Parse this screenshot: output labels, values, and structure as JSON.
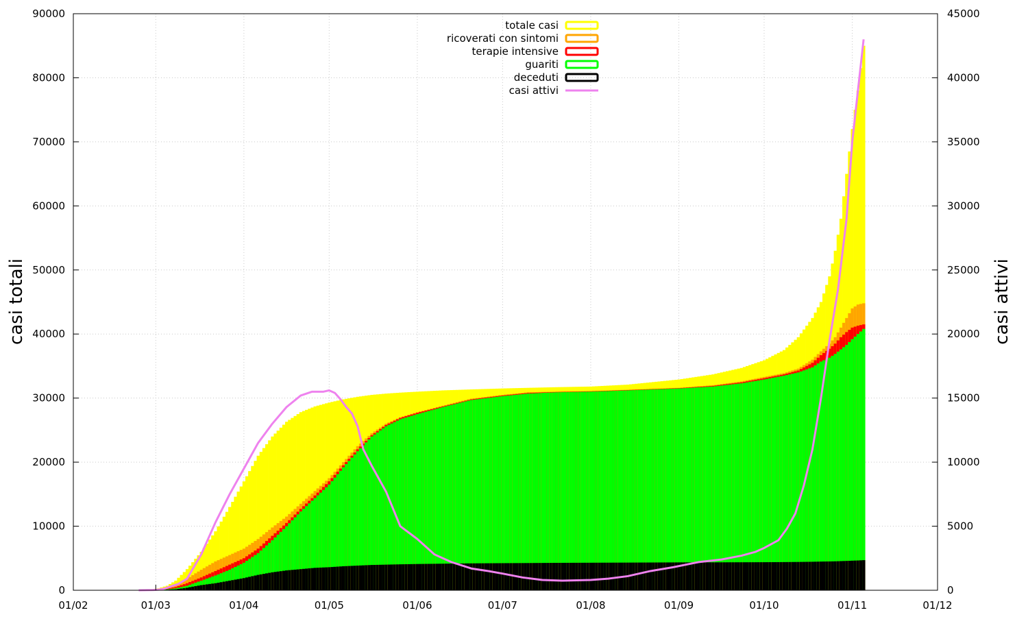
{
  "chart_data": {
    "type": "area",
    "ylabel_left": "casi totali",
    "ylabel_right": "casi attivi",
    "ylim_left": [
      0,
      90000
    ],
    "ylim_right": [
      0,
      45000
    ],
    "y_ticks_left": [
      0,
      10000,
      20000,
      30000,
      40000,
      50000,
      60000,
      70000,
      80000,
      90000
    ],
    "y_ticks_right": [
      0,
      5000,
      10000,
      15000,
      20000,
      25000,
      30000,
      35000,
      40000,
      45000
    ],
    "x_tick_labels": [
      "01/02",
      "01/03",
      "01/04",
      "01/05",
      "01/06",
      "01/07",
      "01/08",
      "01/09",
      "01/10",
      "01/11",
      "01/12"
    ],
    "x_tick_days": [
      0,
      29,
      60,
      90,
      121,
      151,
      182,
      213,
      243,
      274,
      304
    ],
    "xlim_days": [
      0,
      304
    ],
    "grid": true,
    "legend_position": "top-center",
    "legend": [
      {
        "label": "totale casi",
        "color": "#ffff00",
        "kind": "box"
      },
      {
        "label": "ricoverati con sintomi",
        "color": "#ffa500",
        "kind": "box"
      },
      {
        "label": "terapie intensive",
        "color": "#ff0000",
        "kind": "box"
      },
      {
        "label": "guariti",
        "color": "#00ff00",
        "kind": "box"
      },
      {
        "label": "deceduti",
        "color": "#000000",
        "kind": "box"
      },
      {
        "label": "casi attivi",
        "color": "#ee82ee",
        "kind": "line"
      }
    ],
    "bar_series_keypoints": {
      "x_days": [
        23,
        27,
        30,
        33,
        36,
        40,
        45,
        50,
        55,
        60,
        65,
        70,
        75,
        80,
        85,
        90,
        95,
        100,
        105,
        110,
        115,
        121,
        130,
        140,
        151,
        160,
        170,
        182,
        195,
        213,
        225,
        235,
        243,
        250,
        255,
        260,
        263,
        266,
        268,
        270,
        272,
        274,
        276,
        278
      ],
      "totale_casi": [
        0,
        100,
        300,
        700,
        1500,
        3300,
        6000,
        9200,
        13000,
        17000,
        21000,
        24000,
        26300,
        27800,
        28700,
        29300,
        29800,
        30200,
        30500,
        30700,
        30850,
        31000,
        31200,
        31350,
        31500,
        31600,
        31700,
        31800,
        32100,
        32900,
        33700,
        34700,
        35900,
        37500,
        39500,
        42500,
        45000,
        49000,
        53000,
        58000,
        65000,
        72000,
        78000,
        85000
      ],
      "ricoverati_con_sintomi": [
        0,
        60,
        150,
        400,
        800,
        1800,
        3200,
        4500,
        5500,
        6500,
        8000,
        9800,
        11500,
        13500,
        15500,
        17500,
        20000,
        22500,
        24500,
        26000,
        27000,
        27800,
        28800,
        29900,
        30500,
        30900,
        31000,
        31100,
        31300,
        31600,
        32000,
        32600,
        33300,
        33900,
        34600,
        36000,
        37300,
        38500,
        39500,
        41000,
        42500,
        44000,
        44600,
        44800
      ],
      "terapie_intensive": [
        0,
        40,
        100,
        250,
        500,
        1100,
        2000,
        3000,
        4000,
        5000,
        6500,
        8500,
        10500,
        12700,
        14800,
        17000,
        19500,
        22000,
        24200,
        25800,
        26900,
        27700,
        28700,
        29800,
        30400,
        30800,
        30950,
        31050,
        31250,
        31550,
        31900,
        32450,
        33100,
        33700,
        34300,
        35500,
        36700,
        37700,
        38500,
        39500,
        40300,
        41000,
        41300,
        41500
      ],
      "guariti": [
        0,
        20,
        50,
        150,
        300,
        700,
        1500,
        2300,
        3200,
        4300,
        5800,
        7800,
        10000,
        12300,
        14400,
        16500,
        19200,
        21700,
        24000,
        25600,
        26700,
        27500,
        28600,
        29700,
        30300,
        30700,
        30900,
        31000,
        31200,
        31500,
        31800,
        32300,
        32900,
        33500,
        34000,
        34800,
        35700,
        36300,
        36900,
        37600,
        38300,
        39200,
        40000,
        40800
      ],
      "deceduti": [
        0,
        10,
        30,
        80,
        150,
        400,
        800,
        1100,
        1500,
        1900,
        2400,
        2800,
        3100,
        3300,
        3500,
        3600,
        3750,
        3850,
        3950,
        4000,
        4050,
        4100,
        4150,
        4200,
        4230,
        4250,
        4280,
        4300,
        4320,
        4350,
        4360,
        4370,
        4380,
        4400,
        4420,
        4450,
        4480,
        4500,
        4520,
        4550,
        4580,
        4620,
        4650,
        4700
      ]
    },
    "casi_attivi_keypoints": {
      "x_days": [
        23,
        28,
        30,
        32,
        35,
        37,
        40,
        45,
        50,
        55,
        60,
        65,
        70,
        75,
        80,
        84,
        85,
        88,
        90,
        92,
        94,
        96,
        98,
        100,
        102,
        105,
        110,
        115,
        121,
        127,
        133,
        140,
        146,
        151,
        158,
        165,
        172,
        182,
        188,
        195,
        203,
        211,
        220,
        228,
        235,
        240,
        243,
        248,
        251,
        254,
        257,
        260,
        263,
        266,
        269,
        272,
        274,
        276,
        278
      ],
      "values": [
        0,
        20,
        50,
        120,
        350,
        500,
        900,
        2800,
        5300,
        7500,
        9500,
        11500,
        13000,
        14300,
        15200,
        15500,
        15500,
        15500,
        15600,
        15400,
        14900,
        14300,
        13800,
        12800,
        11000,
        9700,
        7700,
        5000,
        4000,
        2800,
        2200,
        1700,
        1500,
        1300,
        1000,
        800,
        750,
        800,
        900,
        1100,
        1500,
        1800,
        2200,
        2400,
        2700,
        3000,
        3300,
        3900,
        4800,
        6000,
        8200,
        11000,
        15000,
        19500,
        23500,
        29000,
        35000,
        39000,
        43000
      ]
    }
  }
}
